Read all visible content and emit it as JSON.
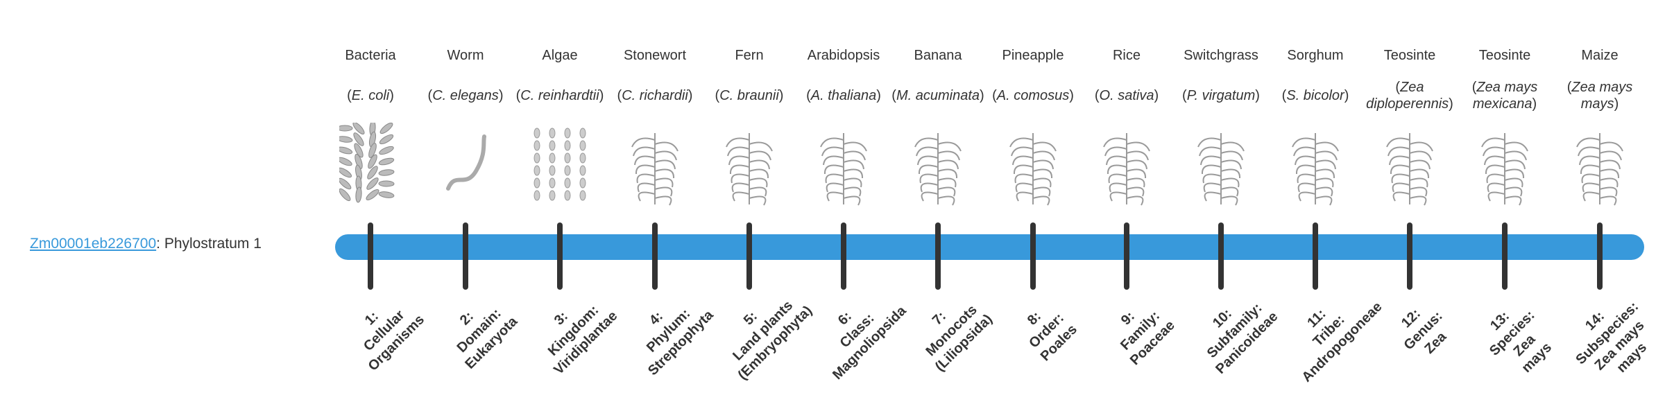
{
  "gene": {
    "id": "Zm00001eb226700",
    "suffix": ": Phylostratum 1"
  },
  "colors": {
    "bar": "#3899db",
    "tick": "#333333",
    "link": "#3899db"
  },
  "strata": [
    {
      "common": "Bacteria",
      "species": "E. coli",
      "icon": "bacteria-icon",
      "rank": [
        "1:",
        "Cellular",
        "Organisms"
      ]
    },
    {
      "common": "Worm",
      "species": "C. elegans",
      "icon": "worm-icon",
      "rank": [
        "2:",
        "Domain:",
        "Eukaryota"
      ]
    },
    {
      "common": "Algae",
      "species": "C. reinhardtii",
      "icon": "algae-icon",
      "rank": [
        "3:",
        "Kingdom:",
        "Viridiplantae"
      ]
    },
    {
      "common": "Stonewort",
      "species": "C. richardii",
      "icon": "stonewort-icon",
      "rank": [
        "4:",
        "Phylum:",
        "Streptophyta"
      ]
    },
    {
      "common": "Fern",
      "species": "C. braunii",
      "icon": "fern-icon",
      "rank": [
        "5:",
        "Land plants",
        "(Embryophyta)"
      ]
    },
    {
      "common": "Arabidopsis",
      "species": "A. thaliana",
      "icon": "arabidopsis-icon",
      "rank": [
        "6:",
        "Class:",
        "Magnoliopsida"
      ]
    },
    {
      "common": "Banana",
      "species": "M. acuminata",
      "icon": "banana-icon",
      "rank": [
        "7:",
        "Monocots",
        "(Liliopsida)"
      ]
    },
    {
      "common": "Pineapple",
      "species": "A. comosus",
      "icon": "pineapple-icon",
      "rank": [
        "8:",
        "Order:",
        "Poales"
      ]
    },
    {
      "common": "Rice",
      "species": "O. sativa",
      "icon": "rice-icon",
      "rank": [
        "9:",
        "Family:",
        "Poaceae"
      ]
    },
    {
      "common": "Switchgrass",
      "species": "P. virgatum",
      "icon": "switchgrass-icon",
      "rank": [
        "10:",
        "Subfamily:",
        "Panicoideae"
      ]
    },
    {
      "common": "Sorghum",
      "species": "S. bicolor",
      "icon": "sorghum-icon",
      "rank": [
        "11:",
        "Tribe:",
        "Andropogoneae"
      ]
    },
    {
      "common": "Teosinte",
      "species": "Zea diploperennis",
      "icon": "teosinte-icon",
      "rank": [
        "12:",
        "Genus:",
        "Zea"
      ]
    },
    {
      "common": "Teosinte",
      "species": "Zea mays mexicana",
      "icon": "teosinte-icon",
      "rank": [
        "13:",
        "Species:",
        "Zea",
        "mays"
      ]
    },
    {
      "common": "Maize",
      "species": "Zea mays mays",
      "icon": "maize-icon",
      "rank": [
        "14:",
        "Subspecies:",
        "Zea mays",
        "mays"
      ]
    }
  ]
}
